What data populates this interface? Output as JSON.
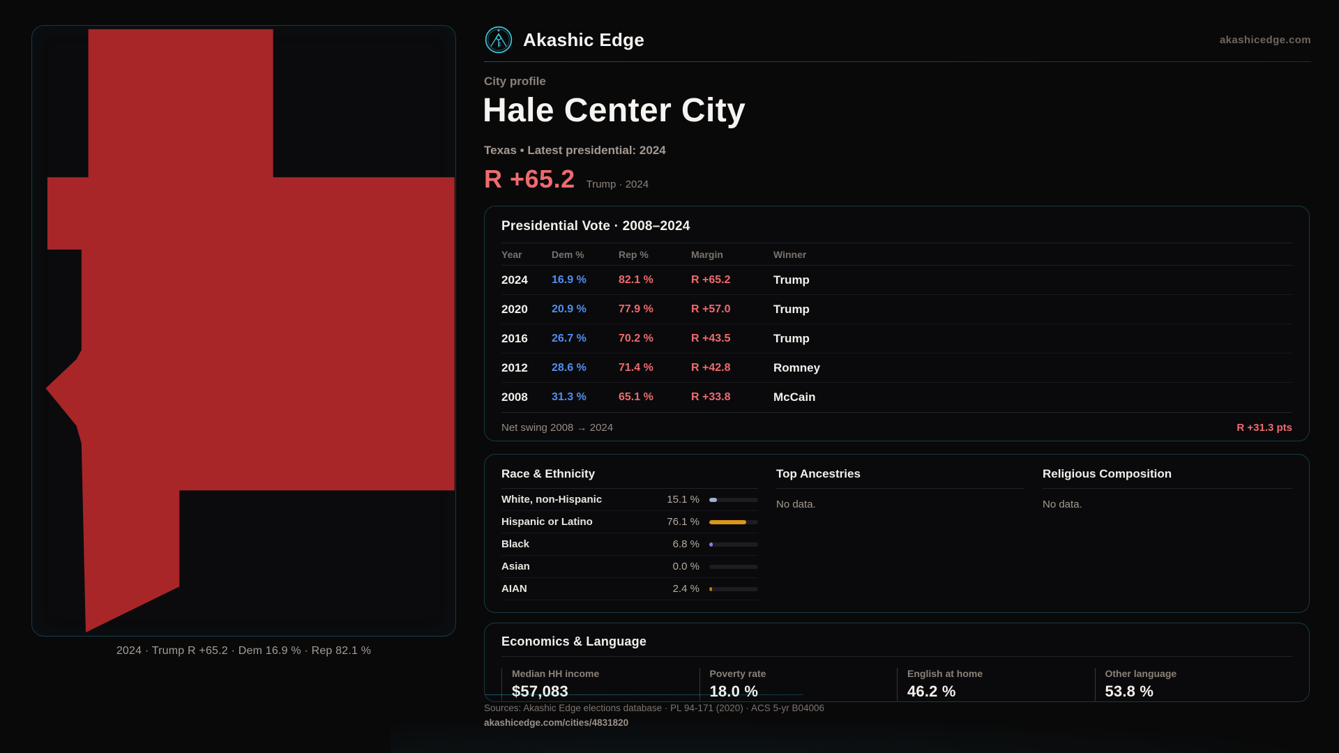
{
  "brand": {
    "name": "Akashic Edge",
    "domain": "akashicedge.com",
    "logo_color": "#3ec7dd"
  },
  "profile": {
    "kicker": "City profile",
    "title": "Hale Center City",
    "subtitle": "Texas • Latest presidential: 2024",
    "big_margin": "R +65.2",
    "big_margin_note": "Trump · 2024"
  },
  "map": {
    "caption": "2024 · Trump R +65.2 · Dem 16.9 % · Rep 82.1 %",
    "fill_color": "#a82628"
  },
  "vote_card": {
    "title": "Presidential Vote · 2008–2024",
    "columns": {
      "year": "Year",
      "dem": "Dem %",
      "rep": "Rep %",
      "margin": "Margin",
      "winner": "Winner"
    },
    "rows": [
      {
        "year": "2024",
        "dem": "16.9 %",
        "rep": "82.1 %",
        "margin": "R +65.2",
        "winner": "Trump"
      },
      {
        "year": "2020",
        "dem": "20.9 %",
        "rep": "77.9 %",
        "margin": "R +57.0",
        "winner": "Trump"
      },
      {
        "year": "2016",
        "dem": "26.7 %",
        "rep": "70.2 %",
        "margin": "R +43.5",
        "winner": "Trump"
      },
      {
        "year": "2012",
        "dem": "28.6 %",
        "rep": "71.4 %",
        "margin": "R +42.8",
        "winner": "Romney"
      },
      {
        "year": "2008",
        "dem": "31.3 %",
        "rep": "65.1 %",
        "margin": "R +33.8",
        "winner": "McCain"
      }
    ],
    "net_swing_label": "Net swing 2008 → 2024",
    "net_swing_value": "R +31.3 pts"
  },
  "race_card": {
    "title": "Race & Ethnicity",
    "rows": [
      {
        "label": "White, non-Hispanic",
        "value": "15.1 %",
        "pct": 15.1,
        "color": "#9db3cd"
      },
      {
        "label": "Hispanic or Latino",
        "value": "76.1 %",
        "pct": 76.1,
        "color": "#dd9718"
      },
      {
        "label": "Black",
        "value": "6.8 %",
        "pct": 6.8,
        "color": "#8d7bf0"
      },
      {
        "label": "Asian",
        "value": "0.0 %",
        "pct": 0.0,
        "color": "#9db3cd"
      },
      {
        "label": "AIAN",
        "value": "2.4 %",
        "pct": 2.4,
        "color": "#bf7916"
      }
    ]
  },
  "ancestries_card": {
    "title": "Top Ancestries",
    "empty": "No data."
  },
  "religion_card": {
    "title": "Religious Composition",
    "empty": "No data."
  },
  "econ_card": {
    "title": "Economics & Language",
    "stats": [
      {
        "label": "Median HH income",
        "value": "$57,083"
      },
      {
        "label": "Poverty rate",
        "value": "18.0 %"
      },
      {
        "label": "English at home",
        "value": "46.2 %"
      },
      {
        "label": "Other language",
        "value": "53.8 %"
      }
    ]
  },
  "footer": {
    "sources": "Sources: Akashic Edge elections database · PL 94-171 (2020) · ACS 5-yr B04006",
    "permalink": "akashicedge.com/cities/4831820"
  }
}
